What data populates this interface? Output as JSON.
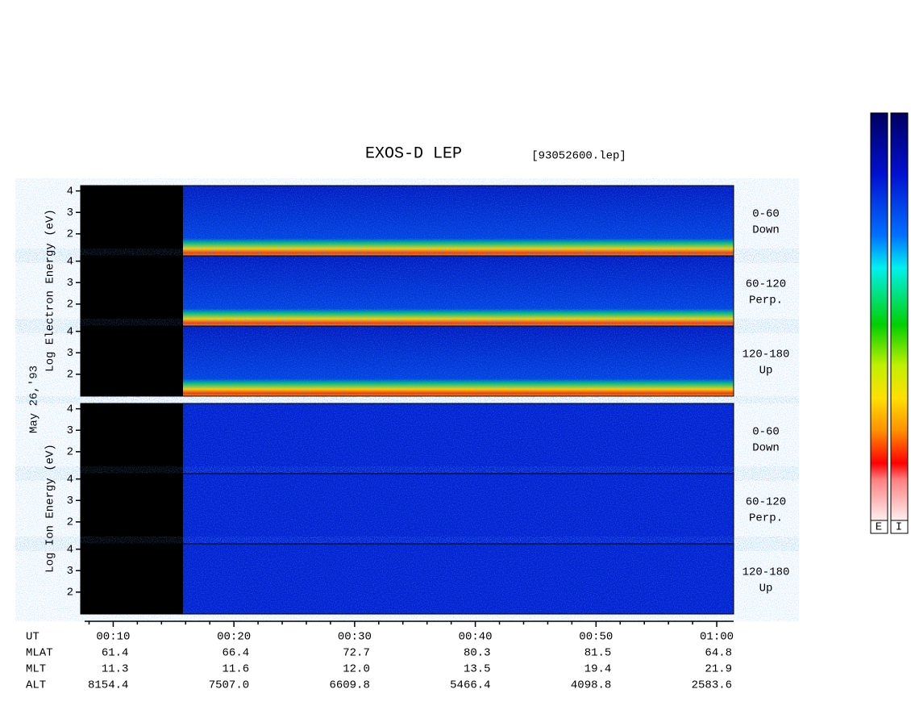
{
  "chart_data": {
    "type": "spectrogram",
    "title": "EXOS-D LEP",
    "subtitle": "[93052600.lep]",
    "date_label": "May 26,'93",
    "groups": [
      {
        "axis_label": "Log   Electron   Energy (eV)",
        "panels": [
          {
            "label": "0-60",
            "sublabel": "Down"
          },
          {
            "label": "60-120",
            "sublabel": "Perp."
          },
          {
            "label": "120-180",
            "sublabel": "Up"
          }
        ]
      },
      {
        "axis_label": "Log   Ion   Energy (eV)",
        "panels": [
          {
            "label": "0-60",
            "sublabel": "Down"
          },
          {
            "label": "60-120",
            "sublabel": "Perp."
          },
          {
            "label": "120-180",
            "sublabel": "Up"
          }
        ]
      }
    ],
    "ylim": [
      0.98,
      4.25
    ],
    "yticks": [
      2,
      3,
      4
    ],
    "xlim": [
      7.3,
      61.4
    ],
    "xticks": [
      {
        "value": 10,
        "label": "00:10"
      },
      {
        "value": 20,
        "label": "00:20"
      },
      {
        "value": 30,
        "label": "00:30"
      },
      {
        "value": 40,
        "label": "00:40"
      },
      {
        "value": 50,
        "label": "00:50"
      },
      {
        "value": 60,
        "label": "01:00"
      }
    ],
    "minor_xticks": [
      8,
      12,
      14,
      16,
      18,
      22,
      24,
      26,
      28,
      32,
      34,
      36,
      38,
      42,
      44,
      46,
      48,
      52,
      54,
      56,
      58
    ],
    "ephemeris": [
      {
        "name": "UT",
        "values": null
      },
      {
        "name": "MLAT",
        "values": [
          "61.4",
          "66.4",
          "72.7",
          "80.3",
          "81.5",
          "64.8"
        ]
      },
      {
        "name": "MLT",
        "values": [
          "11.3",
          "11.6",
          "12.0",
          "13.5",
          "19.4",
          "21.9"
        ]
      },
      {
        "name": "ALT",
        "values": [
          "8154.4",
          "7507.0",
          "6609.8",
          "5466.4",
          "4098.8",
          "2583.6"
        ]
      }
    ],
    "colorbar_labels": [
      "E",
      "I"
    ]
  }
}
